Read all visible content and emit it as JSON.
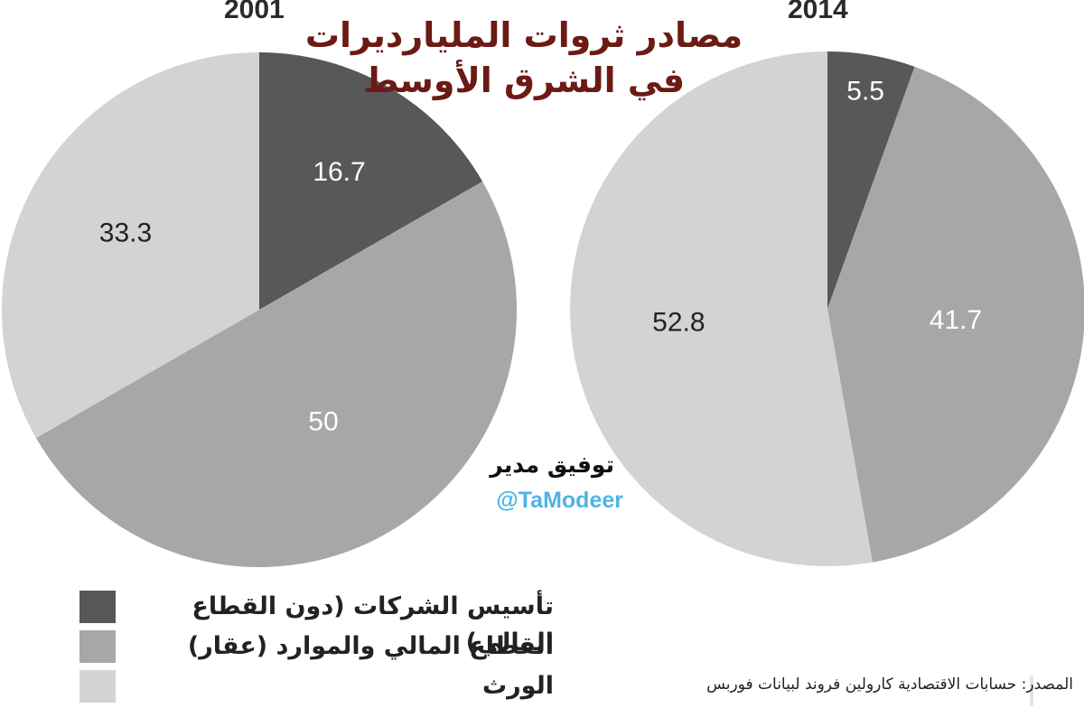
{
  "title_line1": "مصادر ثروات المليارديرات",
  "title_line2": "في الشرق الأوسط",
  "author": "توفيق مدير",
  "handle": "@TaModeer",
  "source": "المصدر: حسابات الاقتصادية كارولين فروند لبيانات فوربس",
  "legend": [
    {
      "label": "تأسيس الشركات (دون القطاع المالي)",
      "color": "#58585a"
    },
    {
      "label": "القطاع المالي والموارد (عقار)",
      "color": "#a7a7a9"
    },
    {
      "label": "الورث",
      "color": "#d3d3d5"
    }
  ],
  "chart_data": [
    {
      "type": "pie",
      "title": "2001",
      "categories": [
        "تأسيس الشركات (دون القطاع المالي)",
        "القطاع المالي والموارد (عقار)",
        "الورث"
      ],
      "values": [
        16.7,
        50,
        33.3
      ],
      "labels": [
        "16.7",
        "50",
        "33.3"
      ],
      "colors": [
        "#58585a",
        "#a7a7a9",
        "#d3d3d5"
      ],
      "label_colors": [
        "#ffffff",
        "#ffffff",
        "#222222"
      ]
    },
    {
      "type": "pie",
      "title": "2014",
      "categories": [
        "تأسيس الشركات (دون القطاع المالي)",
        "القطاع المالي والموارد (عقار)",
        "الورث"
      ],
      "values": [
        5.5,
        41.7,
        52.8
      ],
      "labels": [
        "5.5",
        "41.7",
        "52.8"
      ],
      "colors": [
        "#58585a",
        "#a7a7a9",
        "#d3d3d5"
      ],
      "label_colors": [
        "#ffffff",
        "#ffffff",
        "#222222"
      ]
    }
  ]
}
